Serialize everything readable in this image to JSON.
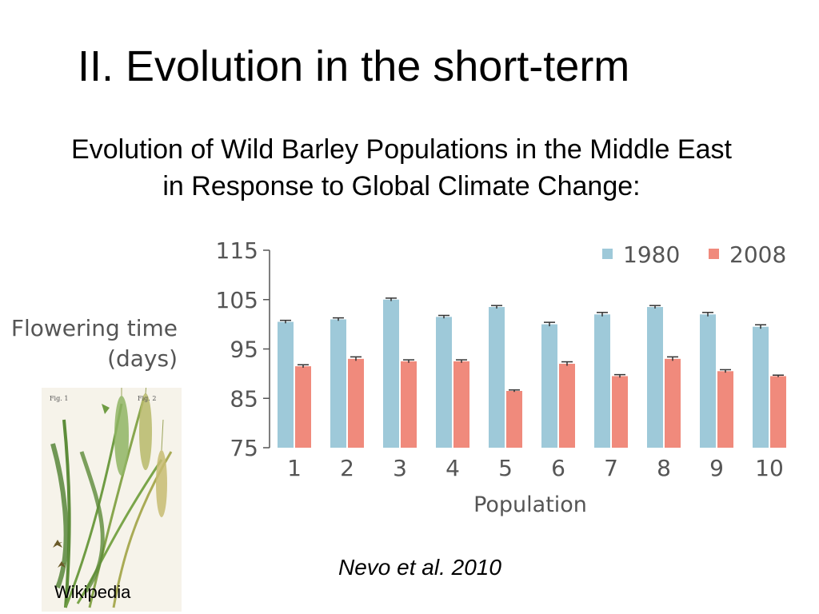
{
  "slide": {
    "title": "II. Evolution in the short-term",
    "subtitle_line1": "Evolution of Wild Barley Populations in the Middle East",
    "subtitle_line2": "in Response to Global Climate Change:",
    "citation": "Nevo et al. 2010",
    "image_caption": "Wikipedia"
  },
  "colors": {
    "series_1980": "#9ec9d9",
    "series_2008": "#f08a7c",
    "axis": "#555555"
  },
  "chart_data": {
    "type": "bar",
    "xlabel": "Population",
    "ylabel_line1": "Flowering time",
    "ylabel_line2": "(days)",
    "categories": [
      "1",
      "2",
      "3",
      "4",
      "5",
      "6",
      "7",
      "8",
      "9",
      "10"
    ],
    "series": [
      {
        "name": "1980",
        "values": [
          100.5,
          101,
          105,
          101.5,
          103.5,
          100,
          102,
          103.5,
          102,
          99.5
        ],
        "errors": [
          0.3,
          0.3,
          0.3,
          0.3,
          0.3,
          0.4,
          0.4,
          0.3,
          0.4,
          0.4
        ]
      },
      {
        "name": "2008",
        "values": [
          91.5,
          93,
          92.5,
          92.5,
          86.5,
          92,
          89.5,
          93,
          90.5,
          89.5
        ],
        "errors": [
          0.3,
          0.4,
          0.3,
          0.3,
          0.2,
          0.4,
          0.3,
          0.4,
          0.3,
          0.2
        ]
      }
    ],
    "ylim": [
      75,
      115
    ],
    "yticks": [
      "75",
      "85",
      "95",
      "105",
      "115"
    ],
    "legend_position": "top-right",
    "grid": false
  }
}
